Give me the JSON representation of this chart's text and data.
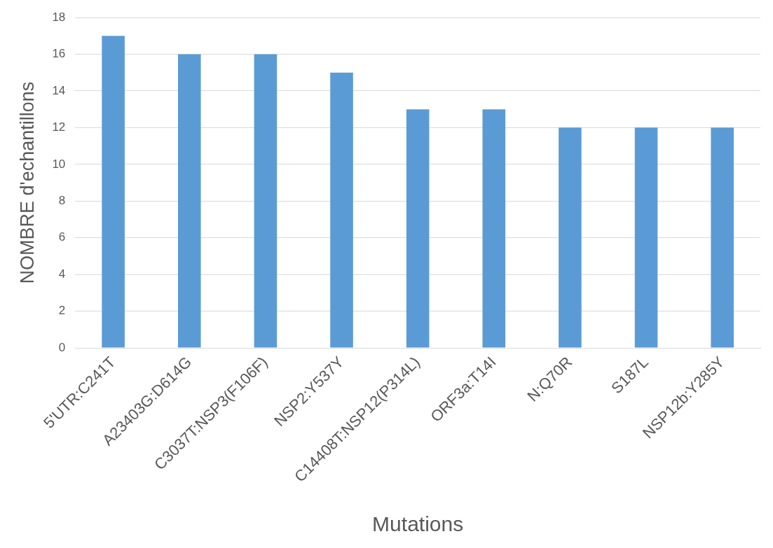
{
  "chart_data": {
    "type": "bar",
    "xlabel": "Mutations",
    "ylabel": "NOMBRE d'echantillons",
    "categories": [
      "5'UTR:C241T",
      "A23403G:D614G",
      "C3037T:NSP3(F106F)",
      "NSP2:Y537Y",
      "C14408T:NSP12(P314L)",
      "ORF3a:T14I",
      "N:Q70R",
      "S187L",
      "NSP12b:Y285Y"
    ],
    "values": [
      17,
      16,
      16,
      15,
      13,
      13,
      12,
      12,
      12
    ],
    "color": "#5b9bd5",
    "ylim": [
      0,
      18
    ],
    "yticks": [
      0,
      2,
      4,
      6,
      8,
      10,
      12,
      14,
      16,
      18
    ],
    "grid": "y",
    "legend": false
  }
}
